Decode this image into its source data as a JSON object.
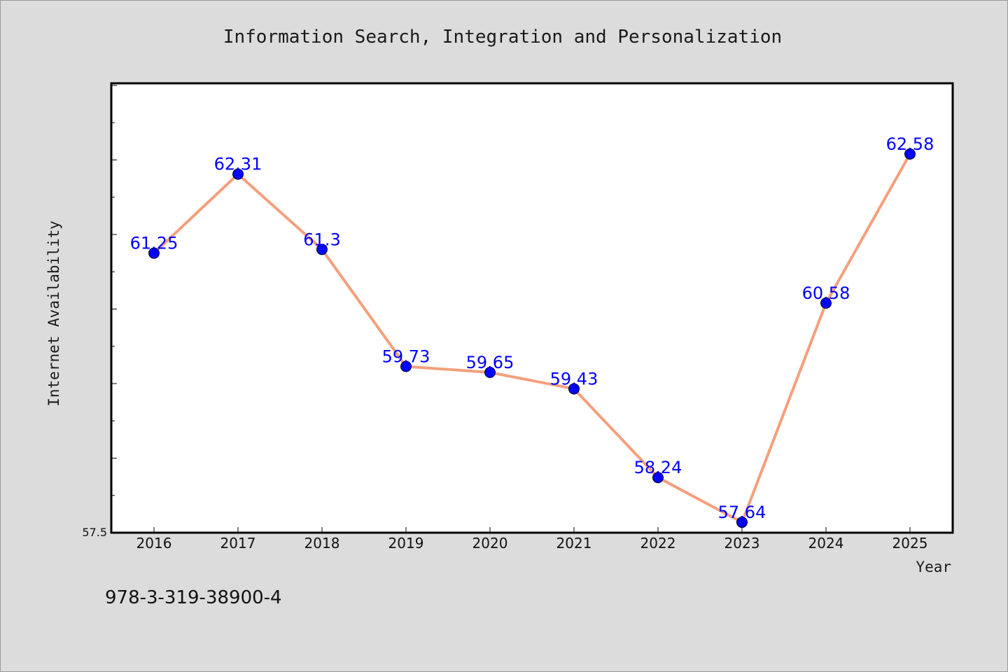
{
  "chart_data": {
    "type": "line",
    "title": "Information Search, Integration and Personalization",
    "xlabel": "Year",
    "ylabel": "Internet Availability",
    "categories": [
      "2016",
      "2017",
      "2018",
      "2019",
      "2020",
      "2021",
      "2022",
      "2023",
      "2024",
      "2025"
    ],
    "series": [
      {
        "values": [
          61.25,
          62.31,
          61.3,
          59.73,
          59.65,
          59.43,
          58.24,
          57.64,
          60.58,
          62.58
        ],
        "labels": [
          "61.25",
          "62.31",
          "61.3",
          "59.73",
          "59.65",
          "59.43",
          "58.24",
          "57.64",
          "60.58",
          "62.58"
        ],
        "line_color": "#f4a07c",
        "marker_color": "#0000ff"
      }
    ],
    "ylim": [
      57.5,
      63.5
    ],
    "yticks_labeled": [
      "57.5"
    ],
    "grid": false,
    "legend": false,
    "background_color": "#dcdcdc",
    "plot_background_color": "#ffffff"
  },
  "footer": {
    "text": "978-3-319-38900-4"
  }
}
